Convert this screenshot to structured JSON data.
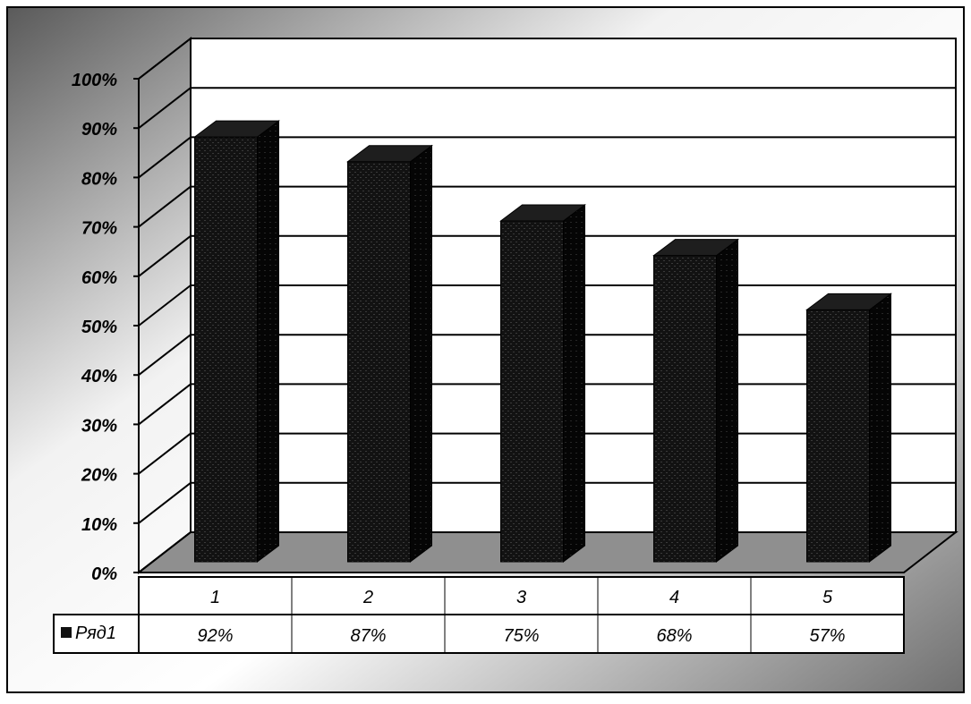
{
  "chart_data": {
    "type": "bar",
    "title": "",
    "xlabel": "",
    "ylabel": "",
    "categories": [
      "1",
      "2",
      "3",
      "4",
      "5"
    ],
    "series": [
      {
        "name": "Ряд1",
        "values": [
          92,
          87,
          75,
          68,
          57
        ],
        "value_labels": [
          "92%",
          "87%",
          "75%",
          "68%",
          "57%"
        ]
      }
    ],
    "ylim": [
      0,
      100
    ],
    "y_ticks": [
      "0%",
      "10%",
      "20%",
      "30%",
      "40%",
      "50%",
      "60%",
      "70%",
      "80%",
      "90%",
      "100%"
    ],
    "grid": true,
    "three_d": true,
    "data_table": true,
    "legend_position": "data-table-left",
    "colors": {
      "bar": "#111111",
      "floor": "#8f8f8f",
      "frame": "#000000"
    }
  }
}
